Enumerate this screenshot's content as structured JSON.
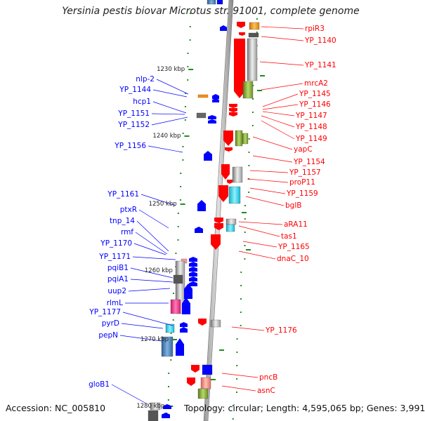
{
  "title": "Yersinia pestis biovar Microtus str. 91001, complete genome",
  "footer": {
    "accession": "Accession: NC_005810",
    "topology": "Topology: circular; Length: 4,595,065 bp; Genes: 3,991"
  },
  "scale_labels": [
    "1230 kbp",
    "1240 kbp",
    "1250 kbp",
    "1260 kbp",
    "1270 kbp",
    "1280 kbp"
  ],
  "colors": {
    "forward": "#0000ff",
    "reverse": "#ff0000",
    "backbone": "#888888",
    "tick": "#228b22"
  },
  "genes_left": [
    "nlp-2",
    "YP_1144",
    "hcp1",
    "YP_1151",
    "YP_1152",
    "YP_1156",
    "YP_1161",
    "ptxR",
    "tnp_14",
    "rmf",
    "YP_1170",
    "YP_1171",
    "pqiB1",
    "pqiA1",
    "uup2",
    "rlmL",
    "YP_1177",
    "pyrD",
    "pepN",
    "gloB1"
  ],
  "genes_right": [
    "rpiR3",
    "YP_1140",
    "YP_1141",
    "mrcA2",
    "YP_1145",
    "YP_1146",
    "YP_1147",
    "YP_1148",
    "YP_1149",
    "yapC",
    "YP_1154",
    "YP_1157",
    "proP11",
    "YP_1159",
    "bglB",
    "aRA11",
    "tas1",
    "YP_1165",
    "dnaC_10",
    "YP_1176",
    "pncB",
    "asnC"
  ]
}
